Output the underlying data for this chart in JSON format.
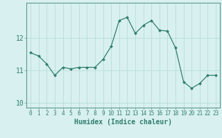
{
  "x": [
    0,
    1,
    2,
    3,
    4,
    5,
    6,
    7,
    8,
    9,
    10,
    11,
    12,
    13,
    14,
    15,
    16,
    17,
    18,
    19,
    20,
    21,
    22,
    23
  ],
  "y": [
    11.55,
    11.45,
    11.2,
    10.85,
    11.1,
    11.05,
    11.1,
    11.1,
    11.1,
    11.35,
    11.75,
    12.55,
    12.65,
    12.15,
    12.4,
    12.55,
    12.25,
    12.22,
    11.7,
    10.65,
    10.45,
    10.6,
    10.85,
    10.85
  ],
  "line_color": "#2e7d6e",
  "marker": "D",
  "marker_size": 2.0,
  "bg_color": "#d8f0f0",
  "grid_color": "#b8dcdc",
  "xlabel": "Humidex (Indice chaleur)",
  "ylim": [
    9.85,
    13.1
  ],
  "xlim": [
    -0.5,
    23.5
  ],
  "yticks": [
    10,
    11,
    12
  ],
  "xticks": [
    0,
    1,
    2,
    3,
    4,
    5,
    6,
    7,
    8,
    9,
    10,
    11,
    12,
    13,
    14,
    15,
    16,
    17,
    18,
    19,
    20,
    21,
    22,
    23
  ],
  "tick_color": "#2e7d6e",
  "label_color": "#2e7d6e",
  "spine_color": "#5a9a8a",
  "tick_fontsize": 5.5,
  "ylabel_fontsize": 7.0,
  "xlabel_fontsize": 7.0
}
